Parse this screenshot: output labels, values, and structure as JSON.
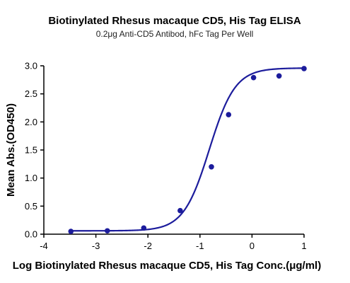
{
  "chart_data": {
    "type": "scatter",
    "title": "Biotinylated Rhesus macaque CD5, His Tag ELISA",
    "subtitle": "0.2μg Anti-CD5 Antibod, hFc Tag Per Well",
    "xlabel": "Log Biotinylated Rhesus macaque CD5, His Tag Conc.(μg/ml)",
    "ylabel": "Mean Abs.(OD450)",
    "xlim": [
      -4,
      1
    ],
    "ylim": [
      0,
      3.0
    ],
    "xticks": [
      "-4",
      "-3",
      "-2",
      "-1",
      "0",
      "1"
    ],
    "yticks": [
      "0.0",
      "0.5",
      "1.0",
      "1.5",
      "2.0",
      "2.5",
      "3.0"
    ],
    "grid": false,
    "series_color": "#1c1c9c",
    "points": [
      {
        "x": -3.48,
        "y": 0.05
      },
      {
        "x": -2.78,
        "y": 0.06
      },
      {
        "x": -2.08,
        "y": 0.11
      },
      {
        "x": -1.38,
        "y": 0.42
      },
      {
        "x": -0.78,
        "y": 1.2
      },
      {
        "x": -0.45,
        "y": 2.13
      },
      {
        "x": 0.03,
        "y": 2.79
      },
      {
        "x": 0.52,
        "y": 2.82
      },
      {
        "x": 1.0,
        "y": 2.95
      }
    ],
    "fit": {
      "bottom": 0.06,
      "top": 2.96,
      "logEC50": -0.82,
      "hill": 1.75
    }
  }
}
